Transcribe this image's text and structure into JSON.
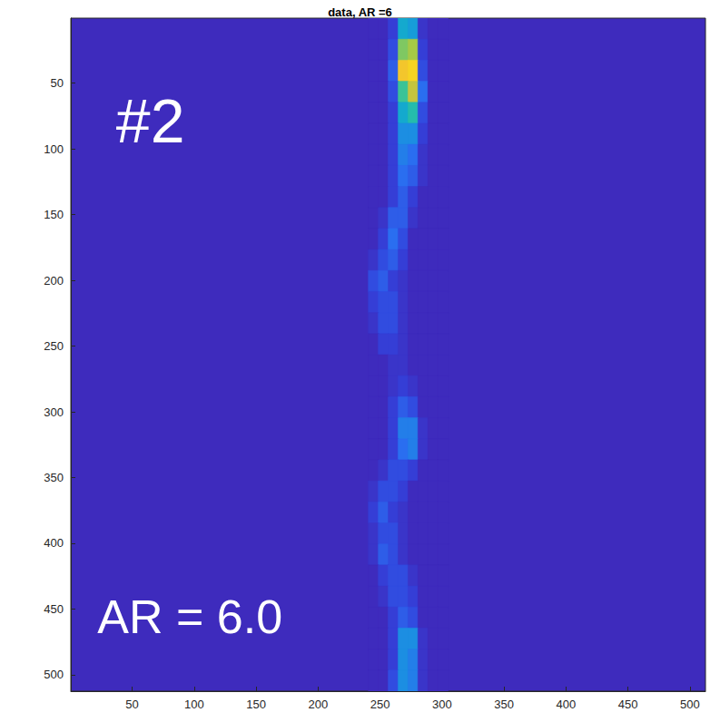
{
  "chart_data": {
    "type": "heatmap",
    "title": "data, AR =6",
    "xlim": [
      0.5,
      512.5
    ],
    "ylim": [
      0.5,
      512.5
    ],
    "xticks": [
      50,
      100,
      150,
      200,
      250,
      300,
      350,
      400,
      450,
      500
    ],
    "yticks": [
      50,
      100,
      150,
      200,
      250,
      300,
      350,
      400,
      450,
      500
    ],
    "y_reversed": true,
    "grid": false,
    "color_range": [
      0,
      1
    ],
    "x_bins": [
      240.5,
      248.5,
      256.5,
      264.5,
      272.5,
      280.5,
      288.5,
      296.5,
      304.5
    ],
    "y_bins": [
      0.5,
      16.5,
      32.5,
      48.5,
      64.5,
      80.5,
      96.5,
      112.5,
      128.5,
      144.5,
      160.5,
      176.5,
      192.5,
      208.5,
      224.5,
      240.5,
      256.5,
      272.5,
      288.5,
      304.5,
      320.5,
      336.5,
      352.5,
      368.5,
      384.5,
      400.5,
      416.5,
      432.5,
      448.5,
      464.5,
      480.5,
      496.5,
      512.5
    ],
    "values": [
      [
        0,
        0,
        0.1,
        0.45,
        0.4,
        0.05,
        0,
        0
      ],
      [
        0,
        0,
        0.15,
        0.7,
        0.75,
        0.1,
        0,
        0
      ],
      [
        0,
        0,
        0.2,
        0.9,
        0.95,
        0.15,
        0,
        0
      ],
      [
        0,
        0,
        0.15,
        0.6,
        0.8,
        0.25,
        0,
        0
      ],
      [
        0,
        0,
        0.1,
        0.45,
        0.55,
        0.15,
        0,
        0
      ],
      [
        0,
        0,
        0.1,
        0.35,
        0.35,
        0.1,
        0,
        0
      ],
      [
        0,
        0,
        0.1,
        0.3,
        0.25,
        0.05,
        0,
        0
      ],
      [
        0,
        0,
        0.1,
        0.25,
        0.2,
        0.05,
        0,
        0
      ],
      [
        0,
        0,
        0.1,
        0.2,
        0.1,
        0,
        0,
        0
      ],
      [
        0,
        0.05,
        0.2,
        0.2,
        0.05,
        0,
        0,
        0
      ],
      [
        0,
        0.1,
        0.25,
        0.15,
        0,
        0,
        0,
        0
      ],
      [
        0.05,
        0.15,
        0.2,
        0.1,
        0,
        0,
        0,
        0
      ],
      [
        0.15,
        0.2,
        0.1,
        0.05,
        0,
        0,
        0,
        0
      ],
      [
        0.1,
        0.15,
        0.15,
        0.05,
        0,
        0,
        0,
        0
      ],
      [
        0.05,
        0.15,
        0.15,
        0.05,
        0,
        0,
        0,
        0
      ],
      [
        0,
        0.1,
        0.1,
        0.05,
        0,
        0,
        0,
        0
      ],
      [
        0,
        0,
        0.05,
        0.05,
        0,
        0,
        0,
        0
      ],
      [
        0,
        0,
        0.05,
        0.1,
        0.05,
        0,
        0,
        0
      ],
      [
        0,
        0,
        0.1,
        0.2,
        0.15,
        0,
        0,
        0
      ],
      [
        0,
        0,
        0.1,
        0.3,
        0.3,
        0.05,
        0,
        0
      ],
      [
        0,
        0,
        0.1,
        0.25,
        0.3,
        0.05,
        0,
        0
      ],
      [
        0,
        0.05,
        0.15,
        0.15,
        0.1,
        0,
        0,
        0
      ],
      [
        0.05,
        0.15,
        0.15,
        0.1,
        0,
        0,
        0,
        0
      ],
      [
        0.1,
        0.2,
        0.1,
        0.05,
        0,
        0,
        0,
        0
      ],
      [
        0.05,
        0.15,
        0.15,
        0.05,
        0,
        0,
        0,
        0
      ],
      [
        0.05,
        0.2,
        0.15,
        0.05,
        0,
        0,
        0,
        0
      ],
      [
        0,
        0.1,
        0.15,
        0.15,
        0.05,
        0,
        0,
        0
      ],
      [
        0,
        0.05,
        0.15,
        0.15,
        0.1,
        0,
        0,
        0
      ],
      [
        0,
        0,
        0.1,
        0.2,
        0.15,
        0,
        0,
        0
      ],
      [
        0,
        0,
        0.1,
        0.35,
        0.35,
        0.05,
        0,
        0
      ],
      [
        0,
        0,
        0.1,
        0.35,
        0.3,
        0.05,
        0,
        0
      ],
      [
        0,
        0,
        0.15,
        0.35,
        0.3,
        0.05,
        0,
        0
      ]
    ],
    "annotations": [
      {
        "text": "#2",
        "x": 37,
        "y": 55
      },
      {
        "text": "AR = 6.0",
        "x": 22,
        "y": 438
      }
    ]
  }
}
